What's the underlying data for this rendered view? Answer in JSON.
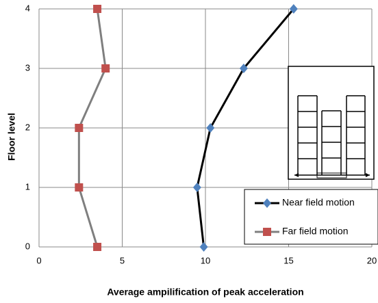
{
  "chart_data": {
    "type": "line",
    "x_label": "Average ampilification of peak acceleration",
    "y_label": "Floor level",
    "xlim": [
      0,
      20
    ],
    "xticks": [
      0,
      5,
      10,
      15,
      20
    ],
    "ylim": [
      0,
      4
    ],
    "yticks": [
      0,
      1,
      2,
      3,
      4
    ],
    "grid": true,
    "legend": "lower right",
    "series": [
      {
        "name": "Near field motion",
        "color": "#000000",
        "marker_color": "#4f81bd",
        "marker": "diamond",
        "x": [
          9.9,
          9.5,
          10.3,
          12.3,
          15.3
        ],
        "y": [
          0,
          1,
          2,
          3,
          4
        ]
      },
      {
        "name": "Far field motion",
        "color": "#7f7f7f",
        "marker_color": "#c0504d",
        "marker": "square",
        "x": [
          3.5,
          2.4,
          2.4,
          4.0,
          3.5
        ],
        "y": [
          0,
          1,
          2,
          3,
          4
        ]
      }
    ]
  }
}
